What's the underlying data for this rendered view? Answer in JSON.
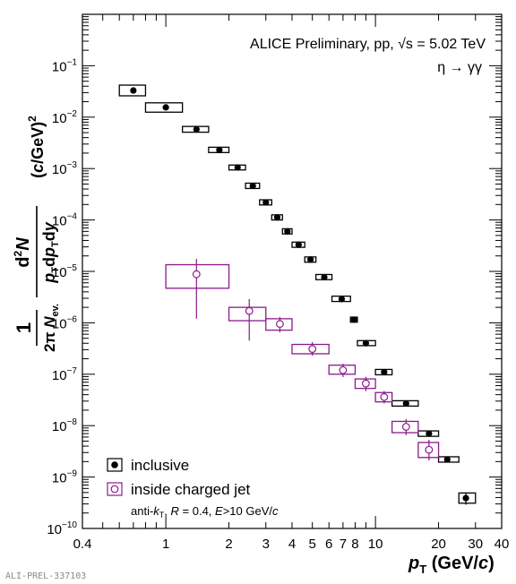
{
  "chart_data": {
    "type": "scatter",
    "log_x": true,
    "log_y": true,
    "xlim": [
      0.4,
      40
    ],
    "ylim": [
      1e-10,
      1
    ],
    "grid": false,
    "x_ticks": [
      {
        "value": 0.4,
        "label": "0.4"
      },
      {
        "value": 1,
        "label": "1"
      },
      {
        "value": 2,
        "label": "2"
      },
      {
        "value": 3,
        "label": "3"
      },
      {
        "value": 4,
        "label": "4"
      },
      {
        "value": 5,
        "label": "5"
      },
      {
        "value": 6,
        "label": "6"
      },
      {
        "value": 7,
        "label": "7"
      },
      {
        "value": 8,
        "label": "8"
      },
      {
        "value": 10,
        "label": "10"
      },
      {
        "value": 20,
        "label": "20"
      },
      {
        "value": 30,
        "label": "30"
      },
      {
        "value": 40,
        "label": "40"
      }
    ],
    "y_ticks": [
      {
        "value": 1e-10,
        "mantissa": "10",
        "exp": "−10"
      },
      {
        "value": 1e-09,
        "mantissa": "10",
        "exp": "−9"
      },
      {
        "value": 1e-08,
        "mantissa": "10",
        "exp": "−8"
      },
      {
        "value": 1e-07,
        "mantissa": "10",
        "exp": "−7"
      },
      {
        "value": 1e-06,
        "mantissa": "10",
        "exp": "−6"
      },
      {
        "value": 1e-05,
        "mantissa": "10",
        "exp": "−5"
      },
      {
        "value": 0.0001,
        "mantissa": "10",
        "exp": "−4"
      },
      {
        "value": 0.001,
        "mantissa": "10",
        "exp": "−3"
      },
      {
        "value": 0.01,
        "mantissa": "10",
        "exp": "−2"
      },
      {
        "value": 0.1,
        "mantissa": "10",
        "exp": "−1"
      }
    ],
    "annotation_line1": "ALICE Preliminary, pp, √s = 5.02 TeV",
    "annotation_line2": "η → γγ",
    "legend_position": "bottom-left",
    "legend_note": "anti-kT, R = 0.4, E>10 GeV/c",
    "xlabel": "pT (GeV/c)",
    "ylabel": "1/(2π Nev.) d²N/(pT dpT dy) (c/GeV)²",
    "series": [
      {
        "name": "inclusive",
        "color": "#000000",
        "marker": "filled-circle",
        "points": [
          {
            "x": 0.7,
            "xlo": 0.6,
            "xhi": 0.8,
            "y": 0.033,
            "sys_lo": 0.026,
            "sys_hi": 0.042
          },
          {
            "x": 1.0,
            "xlo": 0.8,
            "xhi": 1.2,
            "y": 0.0155,
            "sys_lo": 0.0125,
            "sys_hi": 0.019
          },
          {
            "x": 1.4,
            "xlo": 1.2,
            "xhi": 1.6,
            "y": 0.0058,
            "sys_lo": 0.0051,
            "sys_hi": 0.0066
          },
          {
            "x": 1.8,
            "xlo": 1.6,
            "xhi": 2.0,
            "y": 0.0023,
            "sys_lo": 0.00205,
            "sys_hi": 0.0026
          },
          {
            "x": 2.2,
            "xlo": 2.0,
            "xhi": 2.4,
            "y": 0.00105,
            "sys_lo": 0.00094,
            "sys_hi": 0.00117
          },
          {
            "x": 2.6,
            "xlo": 2.4,
            "xhi": 2.8,
            "y": 0.00046,
            "sys_lo": 0.00041,
            "sys_hi": 0.00052
          },
          {
            "x": 3.0,
            "xlo": 2.8,
            "xhi": 3.2,
            "y": 0.00022,
            "sys_lo": 0.000196,
            "sys_hi": 0.000247
          },
          {
            "x": 3.4,
            "xlo": 3.2,
            "xhi": 3.6,
            "y": 0.000112,
            "sys_lo": 0.0001,
            "sys_hi": 0.000126
          },
          {
            "x": 3.8,
            "xlo": 3.6,
            "xhi": 4.0,
            "y": 6e-05,
            "sys_lo": 5.35e-05,
            "sys_hi": 6.75e-05
          },
          {
            "x": 4.3,
            "xlo": 4.0,
            "xhi": 4.6,
            "y": 3.3e-05,
            "sys_lo": 2.94e-05,
            "sys_hi": 3.71e-05
          },
          {
            "x": 4.9,
            "xlo": 4.6,
            "xhi": 5.2,
            "y": 1.7e-05,
            "sys_lo": 1.51e-05,
            "sys_hi": 1.91e-05
          },
          {
            "x": 5.7,
            "xlo": 5.2,
            "xhi": 6.2,
            "y": 7.7e-06,
            "sys_lo": 6.9e-06,
            "sys_hi": 8.7e-06
          },
          {
            "x": 6.9,
            "xlo": 6.2,
            "xhi": 7.6,
            "y": 2.9e-06,
            "sys_lo": 2.6e-06,
            "sys_hi": 3.3e-06
          },
          {
            "x": 7.9,
            "xlo": 7.6,
            "xhi": 8.2,
            "y": 1.15e-06,
            "sys_lo": 1.03e-06,
            "sys_hi": 1.29e-06
          },
          {
            "x": 9.0,
            "xlo": 8.2,
            "xhi": 10.0,
            "y": 4e-07,
            "sys_lo": 3.6e-07,
            "sys_hi": 4.5e-07
          },
          {
            "x": 11.0,
            "xlo": 10.0,
            "xhi": 12.0,
            "y": 1.1e-07,
            "sys_lo": 9.75e-08,
            "sys_hi": 1.24e-07
          },
          {
            "x": 14.0,
            "xlo": 12.0,
            "xhi": 16.0,
            "y": 2.7e-08,
            "sys_lo": 2.4e-08,
            "sys_hi": 3.05e-08
          },
          {
            "x": 18.0,
            "xlo": 16.0,
            "xhi": 20.0,
            "y": 7e-09,
            "sys_lo": 6.2e-09,
            "sys_hi": 7.9e-09
          },
          {
            "x": 22.0,
            "xlo": 20.0,
            "xhi": 25.0,
            "y": 2.2e-09,
            "sys_lo": 1.95e-09,
            "sys_hi": 2.48e-09
          },
          {
            "x": 27.0,
            "xlo": 25.0,
            "xhi": 30.0,
            "y": 3.9e-10,
            "sys_lo": 3.1e-10,
            "sys_hi": 4.9e-10,
            "stat_lo": 2.9e-10,
            "stat_hi": 5e-10
          }
        ]
      },
      {
        "name": "inside charged jet",
        "color": "#8b1a8b",
        "marker": "open-circle",
        "points": [
          {
            "x": 1.4,
            "xlo": 1.0,
            "xhi": 2.0,
            "y": 8.8e-06,
            "sys_lo": 4.7e-06,
            "sys_hi": 1.35e-05,
            "stat_lo": 1.2e-06,
            "stat_hi": 1.75e-05
          },
          {
            "x": 2.5,
            "xlo": 2.0,
            "xhi": 3.0,
            "y": 1.7e-06,
            "sys_lo": 1.1e-06,
            "sys_hi": 2e-06,
            "stat_lo": 4.5e-07,
            "stat_hi": 2.9e-06
          },
          {
            "x": 3.5,
            "xlo": 3.0,
            "xhi": 4.0,
            "y": 9.5e-07,
            "sys_lo": 7.2e-07,
            "sys_hi": 1.2e-06,
            "stat_lo": 6.5e-07,
            "stat_hi": 1.3e-06
          },
          {
            "x": 5.0,
            "xlo": 4.0,
            "xhi": 6.0,
            "y": 3.1e-07,
            "sys_lo": 2.5e-07,
            "sys_hi": 3.8e-07,
            "stat_lo": 2.3e-07,
            "stat_hi": 4.2e-07
          },
          {
            "x": 7.0,
            "xlo": 6.0,
            "xhi": 8.0,
            "y": 1.2e-07,
            "sys_lo": 1e-07,
            "sys_hi": 1.5e-07,
            "stat_lo": 8.8e-08,
            "stat_hi": 1.6e-07
          },
          {
            "x": 9.0,
            "xlo": 8.0,
            "xhi": 10.0,
            "y": 6.6e-08,
            "sys_lo": 5.3e-08,
            "sys_hi": 8.1e-08,
            "stat_lo": 4.7e-08,
            "stat_hi": 8.9e-08
          },
          {
            "x": 11.0,
            "xlo": 10.0,
            "xhi": 12.0,
            "y": 3.6e-08,
            "sys_lo": 2.9e-08,
            "sys_hi": 4.4e-08,
            "stat_lo": 2.7e-08,
            "stat_hi": 4.7e-08
          },
          {
            "x": 14.0,
            "xlo": 12.0,
            "xhi": 16.0,
            "y": 9.5e-09,
            "sys_lo": 7.3e-09,
            "sys_hi": 1.21e-08,
            "stat_lo": 6.5e-09,
            "stat_hi": 1.35e-08
          },
          {
            "x": 18.0,
            "xlo": 16.0,
            "xhi": 20.0,
            "y": 3.4e-09,
            "sys_lo": 2.4e-09,
            "sys_hi": 4.7e-09,
            "stat_lo": 2.1e-09,
            "stat_hi": 5.3e-09
          }
        ]
      }
    ]
  },
  "watermark": "ALI-PREL-337103"
}
